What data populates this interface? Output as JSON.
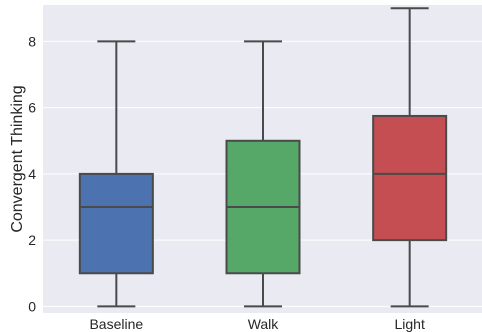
{
  "chart_data": {
    "type": "boxplot",
    "ylabel": "Convergent Thinking",
    "xlabel": "",
    "ylim": [
      -0.2,
      9.1
    ],
    "yticks": [
      0,
      2,
      4,
      6,
      8
    ],
    "grid": true,
    "categories": [
      "Baseline",
      "Walk",
      "Light"
    ],
    "boxes": [
      {
        "category": "Baseline",
        "whisker_low": 0,
        "q1": 1,
        "median": 3,
        "q3": 4,
        "whisker_high": 8,
        "color": "#4c72b0"
      },
      {
        "category": "Walk",
        "whisker_low": 0,
        "q1": 1,
        "median": 3,
        "q3": 5,
        "whisker_high": 8,
        "color": "#55a868"
      },
      {
        "category": "Light",
        "whisker_low": 0,
        "q1": 2,
        "median": 4,
        "q3": 5.75,
        "whisker_high": 9,
        "color": "#c44e52"
      }
    ]
  },
  "colors": {
    "plot_background": "#eaeaf2",
    "grid": "#ffffff",
    "line": "#4a4a4a"
  }
}
